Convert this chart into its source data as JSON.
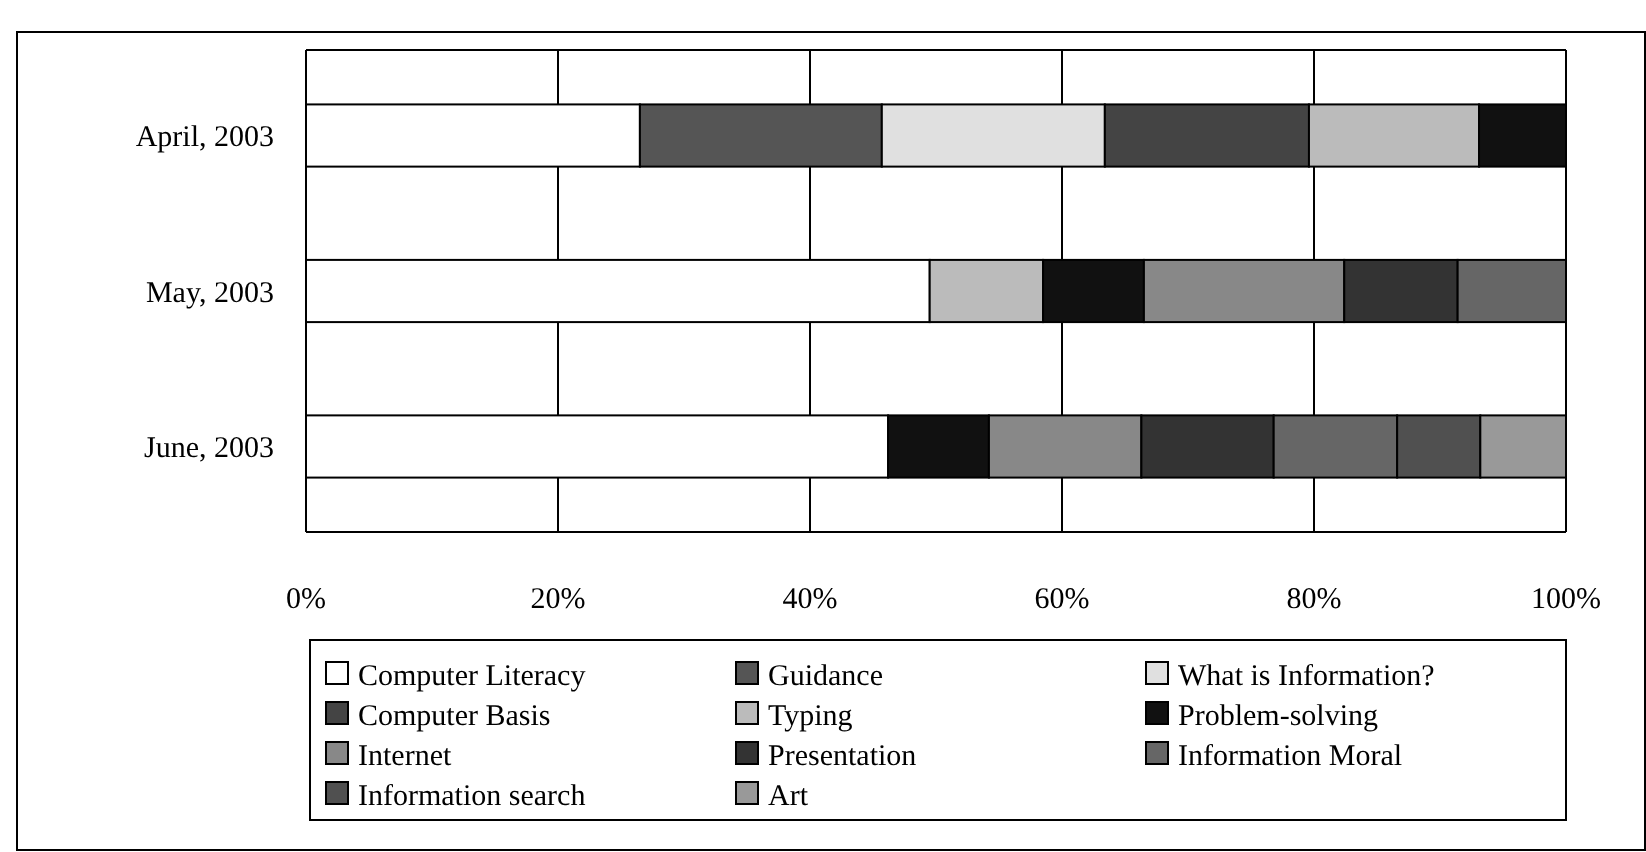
{
  "chart_data": {
    "type": "bar",
    "orientation": "horizontal",
    "stacked": true,
    "categories": [
      "April, 2003",
      "May, 2003",
      "June, 2003"
    ],
    "series": [
      {
        "name": "Computer Literacy",
        "color": "#ffffff",
        "values": [
          26.5,
          49.5,
          46.2
        ]
      },
      {
        "name": "Guidance",
        "color": "#555555",
        "values": [
          19.2,
          null,
          null
        ]
      },
      {
        "name": "What is Information?",
        "color": "#e0e0e0",
        "values": [
          17.7,
          null,
          null
        ]
      },
      {
        "name": "Computer Basis",
        "color": "#444444",
        "values": [
          16.2,
          null,
          null
        ]
      },
      {
        "name": "Typing",
        "color": "#bbbbbb",
        "values": [
          13.5,
          9,
          null
        ]
      },
      {
        "name": "Problem-solving",
        "color": "#111111",
        "values": [
          6.9,
          8,
          8
        ]
      },
      {
        "name": "Internet",
        "color": "#888888",
        "values": [
          null,
          15.9,
          12.1
        ]
      },
      {
        "name": "Presentation",
        "color": "#333333",
        "values": [
          null,
          9,
          10.5
        ]
      },
      {
        "name": "Information Moral",
        "color": "#666666",
        "values": [
          null,
          8.6,
          9.8
        ]
      },
      {
        "name": "Information search",
        "color": "#505050",
        "values": [
          null,
          null,
          6.6
        ]
      },
      {
        "name": "Art",
        "color": "#999999",
        "values": [
          null,
          null,
          6.8
        ]
      }
    ],
    "xlim": [
      0,
      100
    ],
    "xticks": [
      {
        "value": 0,
        "label": "0%"
      },
      {
        "value": 20,
        "label": "20%"
      },
      {
        "value": 40,
        "label": "40%"
      },
      {
        "value": 60,
        "label": "60%"
      },
      {
        "value": 80,
        "label": "80%"
      },
      {
        "value": 100,
        "label": "100%"
      }
    ],
    "grid": "x",
    "legend": "bottom"
  }
}
